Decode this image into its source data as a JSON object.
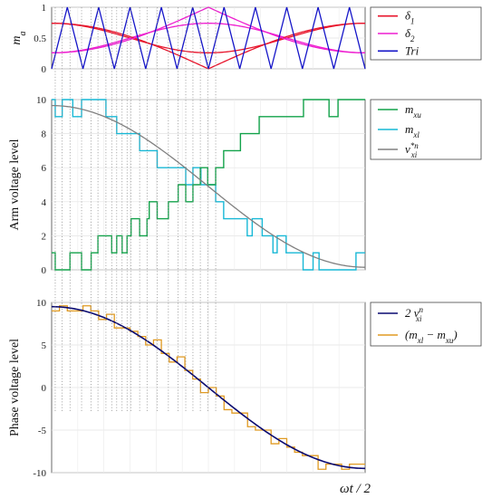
{
  "xlabel": "ωt / 2",
  "colors": {
    "delta1": "#e8152c",
    "delta2": "#ee1fd0",
    "tri": "#1414c8",
    "m_xu": "#12a24a",
    "m_xl": "#17b8d6",
    "v_ref": "#808080",
    "phase_ref": "#0a0a70",
    "phase_diff": "#e09a22",
    "guide": "#8a8a8a"
  },
  "chart_data": [
    {
      "type": "line",
      "ylabel": "m_a",
      "ylim": [
        0,
        1
      ],
      "yticks": [
        "0",
        "0.5",
        "1"
      ],
      "xlim": [
        0,
        1.5708
      ],
      "triangle_periods": 10,
      "grid": true,
      "legend_position": "right",
      "series": [
        {
          "key": "delta1",
          "name": "δ1",
          "values_at_x": {
            "0": 0.74,
            "0.7854": 0.0,
            "1.5708": 0.26
          }
        },
        {
          "key": "delta2",
          "name": "δ2",
          "values_at_x": {
            "0": 0.26,
            "0.7854": 1.0,
            "1.5708": 0.74
          }
        },
        {
          "key": "tri",
          "name": "Tri",
          "min": 0,
          "max": 1,
          "periods": 10
        }
      ]
    },
    {
      "type": "line",
      "ylabel": "Arm voltage level",
      "ylim": [
        0,
        10
      ],
      "yticks": [
        "0",
        "2",
        "4",
        "6",
        "8",
        "10"
      ],
      "xlim": [
        0,
        1.5708
      ],
      "grid": true,
      "legend_position": "right",
      "series": [
        {
          "key": "m_xu",
          "name": "m_xu",
          "style": "step",
          "x": [
            0,
            0.018,
            0.092,
            0.15,
            0.198,
            0.232,
            0.301,
            0.326,
            0.353,
            0.378,
            0.398,
            0.441,
            0.478,
            0.489,
            0.529,
            0.585,
            0.634,
            0.672,
            0.708,
            0.745,
            0.782,
            0.822,
            0.862,
            0.946,
            1.04,
            1.145,
            1.262,
            1.39,
            1.435,
            1.49,
            1.5708
          ],
          "values": [
            1,
            0,
            1,
            0,
            1,
            2,
            1,
            2,
            1,
            2,
            3,
            2,
            3,
            4,
            3,
            4,
            5,
            4,
            5,
            6,
            5,
            6,
            7,
            8,
            9,
            9,
            10,
            9,
            10,
            10,
            10
          ]
        },
        {
          "key": "m_xl",
          "name": "m_xl",
          "style": "step",
          "x": [
            0,
            0.018,
            0.053,
            0.106,
            0.15,
            0.272,
            0.326,
            0.353,
            0.441,
            0.529,
            0.585,
            0.672,
            0.708,
            0.748,
            0.822,
            0.862,
            0.943,
            0.98,
            1.005,
            1.055,
            1.109,
            1.13,
            1.175,
            1.228,
            1.26,
            1.31,
            1.34,
            1.48,
            1.525,
            1.5708
          ],
          "values": [
            10,
            9,
            10,
            9,
            10,
            9,
            8,
            8,
            7,
            6,
            6,
            5,
            6,
            5,
            4,
            3,
            3,
            2,
            3,
            2,
            1,
            2,
            1,
            1,
            0,
            1,
            0,
            0,
            1,
            1
          ]
        },
        {
          "key": "v_ref",
          "name": "v*n_xi",
          "formula": "4.9 + 4.75 * cos(2x)"
        }
      ]
    },
    {
      "type": "line",
      "ylabel": "Phase voltage level",
      "ylim": [
        -10,
        10
      ],
      "yticks": [
        "10",
        "5",
        "0",
        "-5",
        "-10"
      ],
      "xlim": [
        0,
        1.5708
      ],
      "grid": true,
      "legend_position": "right",
      "series": [
        {
          "key": "phase_ref",
          "name": "2 vn_xi",
          "formula": "9.5 * cos(2x)"
        },
        {
          "key": "phase_diff",
          "name": "(m_xl − m_xu)",
          "style": "step",
          "derived_from": "m_xl - m_xu"
        }
      ]
    }
  ],
  "legends": [
    [
      {
        "key": "delta1",
        "text": "δ",
        "sub": "1"
      },
      {
        "key": "delta2",
        "text": "δ",
        "sub": "2"
      },
      {
        "key": "tri",
        "text": "Tri",
        "sub": ""
      }
    ],
    [
      {
        "key": "m_xu",
        "text": "m",
        "sub": "xu",
        "sup": ""
      },
      {
        "key": "m_xl",
        "text": "m",
        "sub": "xl",
        "sup": ""
      },
      {
        "key": "v_ref",
        "text": "v",
        "sub": "xi",
        "sup": "*n"
      }
    ],
    [
      {
        "key": "phase_ref",
        "text": "2 v",
        "sub": "xi",
        "sup": "n"
      },
      {
        "key": "phase_diff",
        "text": "(m",
        "sub": "xl",
        "mid": " − m",
        "sub2": "xu",
        "end": ")"
      }
    ]
  ]
}
